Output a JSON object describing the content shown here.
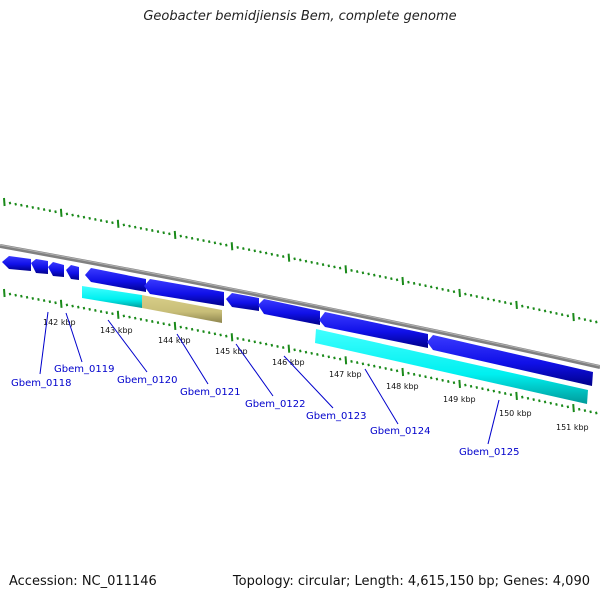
{
  "title": "Geobacter bemidjiensis Bem, complete genome",
  "footer": {
    "accession": "Accession: NC_011146",
    "summary": "Topology: circular; Length: 4,615,150 bp; Genes: 4,090"
  },
  "colors": {
    "forward_gene": "#1010e8",
    "forward_gene_dark": "#00008a",
    "feature_cyan": "#00f0f0",
    "feature_cyan_dark": "#009a9a",
    "feature_khaki": "#c8be78",
    "feature_khaki_dark": "#8e864e",
    "backbone": "#808080",
    "tick": "#1a8a1a",
    "gene_label": "#0000cc",
    "kbp_label": "#111111"
  },
  "kbp_ticks": [
    "142 kbp",
    "143 kbp",
    "144 kbp",
    "145 kbp",
    "146 kbp",
    "147 kbp",
    "148 kbp",
    "149 kbp",
    "150 kbp",
    "151 kbp"
  ],
  "gene_labels": [
    "Gbem_0118",
    "Gbem_0119",
    "Gbem_0120",
    "Gbem_0121",
    "Gbem_0122",
    "Gbem_0123",
    "Gbem_0124",
    "Gbem_0125"
  ]
}
